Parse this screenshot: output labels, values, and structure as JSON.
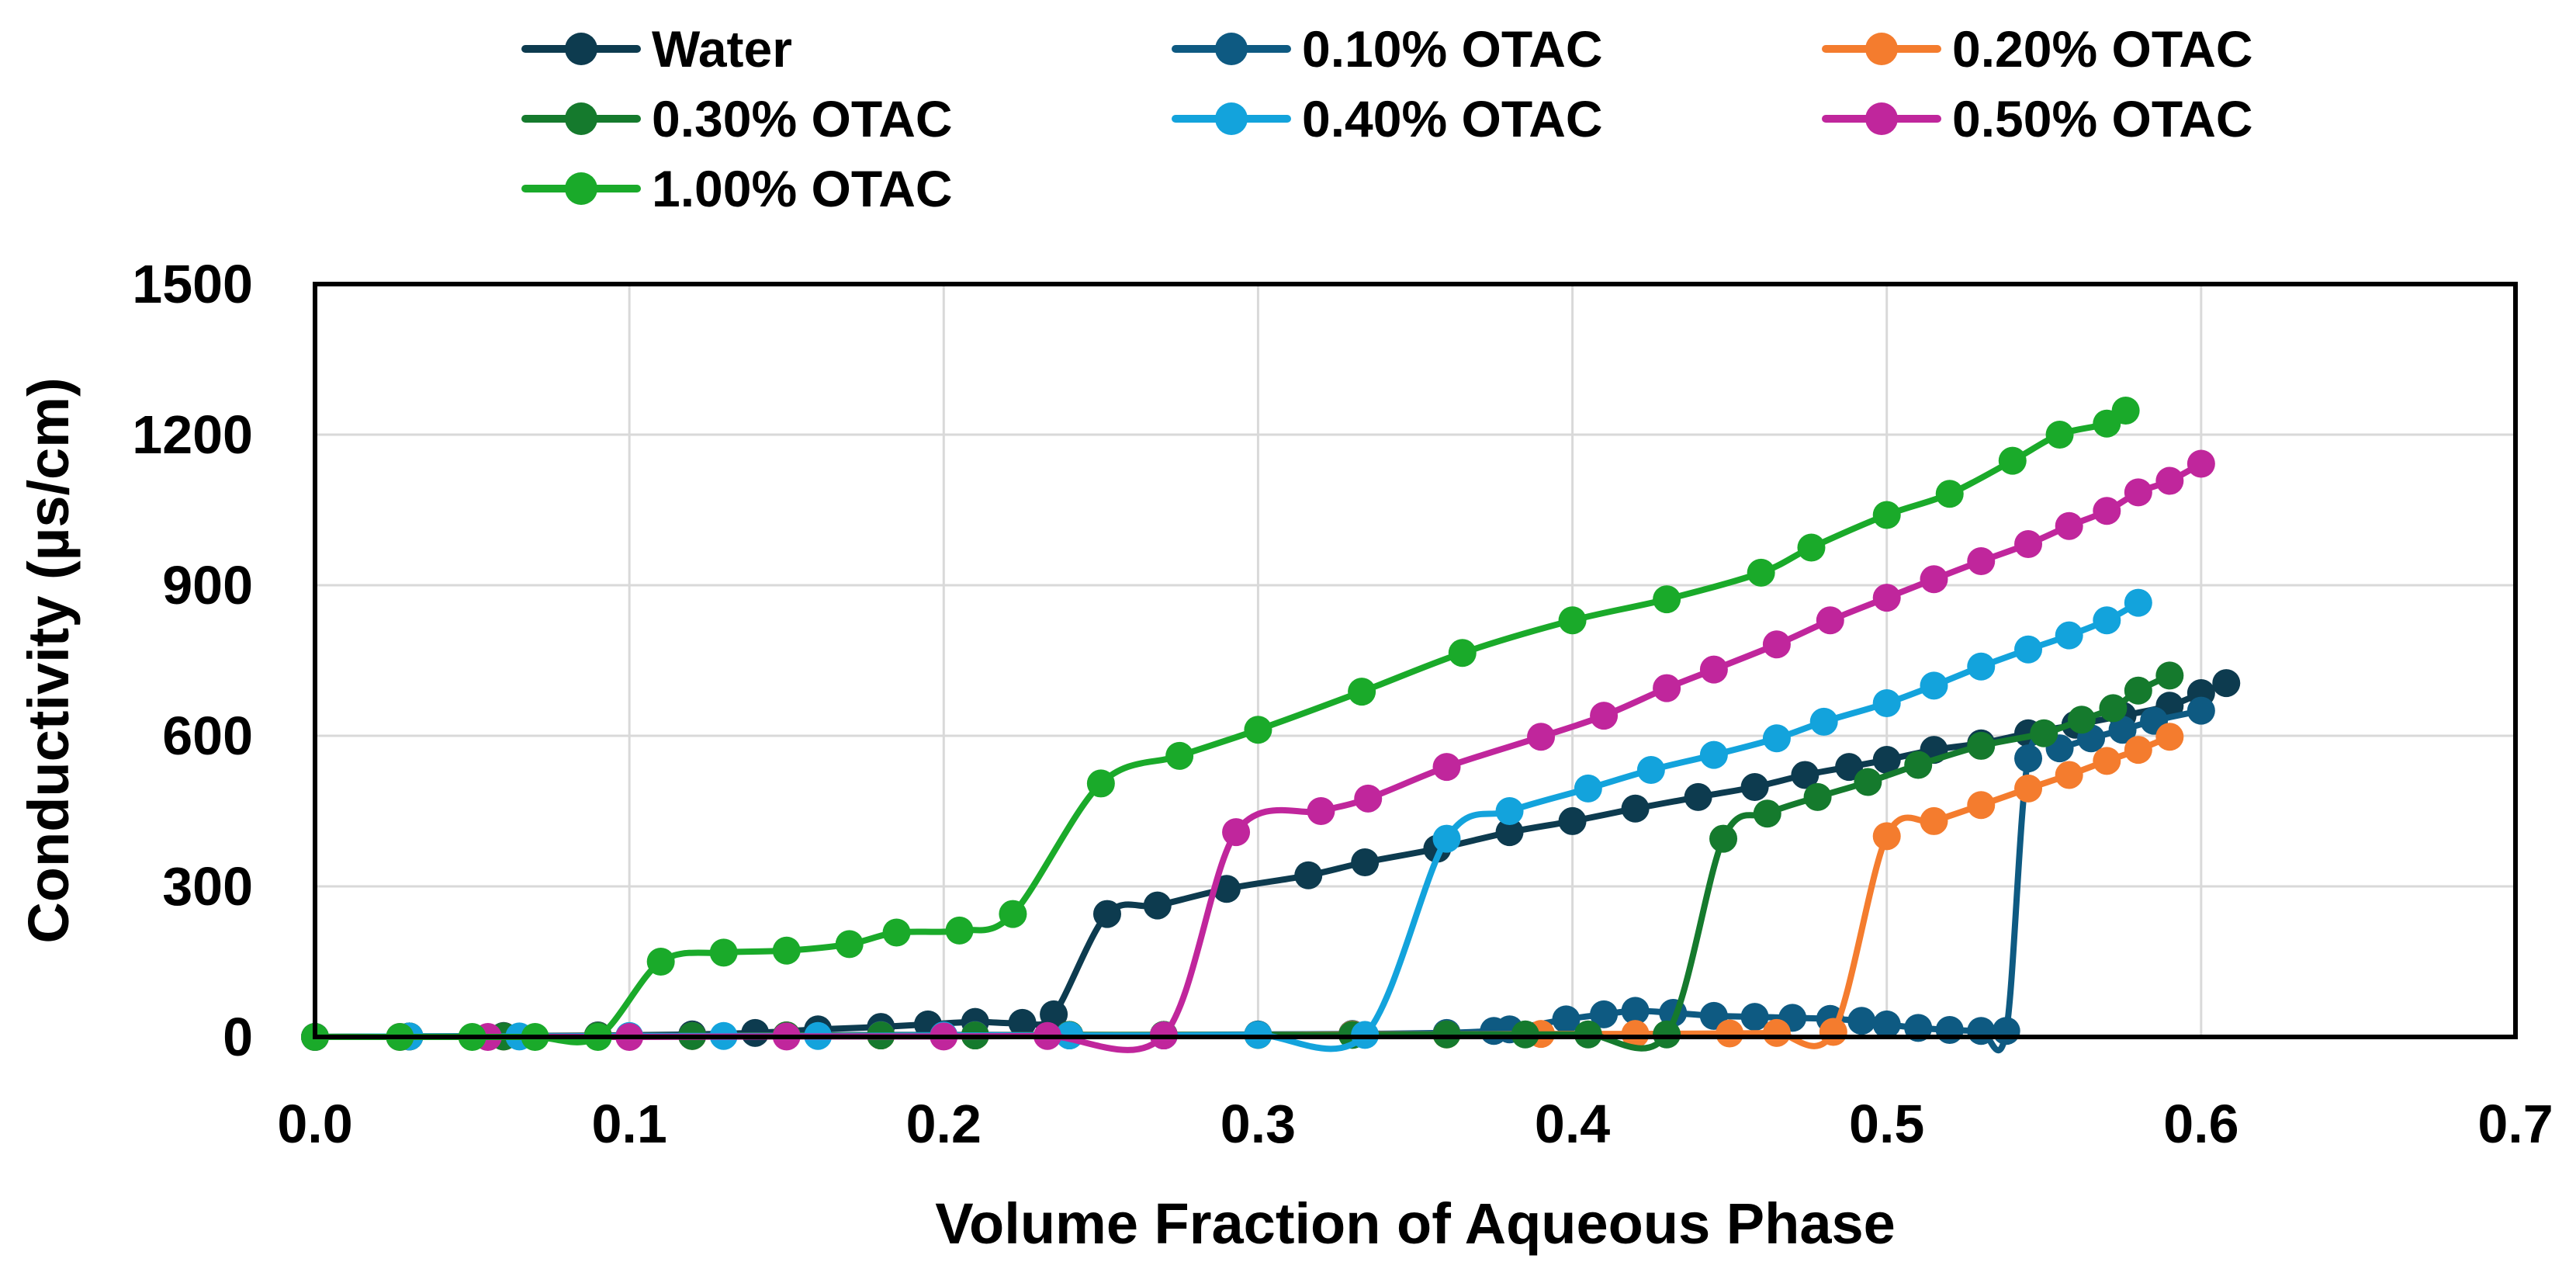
{
  "chart_data": {
    "type": "line",
    "title": "",
    "xlabel": "Volume Fraction of Aqueous Phase",
    "ylabel": "Conductivity (µs/cm)",
    "xlim": [
      0,
      0.7
    ],
    "ylim": [
      0,
      1500
    ],
    "xticks": [
      "0.0",
      "0.1",
      "0.2",
      "0.3",
      "0.4",
      "0.5",
      "0.6",
      "0.7"
    ],
    "yticks": [
      "0",
      "300",
      "600",
      "900",
      "1200",
      "1500"
    ],
    "grid": true,
    "legend_position": "top",
    "series": [
      {
        "name": "Water",
        "color": "#0d3b4f",
        "points": [
          [
            0,
            0
          ],
          [
            0.03,
            1
          ],
          [
            0.06,
            2
          ],
          [
            0.09,
            3
          ],
          [
            0.12,
            5
          ],
          [
            0.14,
            8
          ],
          [
            0.16,
            15
          ],
          [
            0.18,
            20
          ],
          [
            0.195,
            25
          ],
          [
            0.21,
            30
          ],
          [
            0.225,
            28
          ],
          [
            0.235,
            45
          ],
          [
            0.252,
            245
          ],
          [
            0.268,
            262
          ],
          [
            0.29,
            295
          ],
          [
            0.316,
            322
          ],
          [
            0.334,
            348
          ],
          [
            0.357,
            375
          ],
          [
            0.38,
            408
          ],
          [
            0.4,
            430
          ],
          [
            0.42,
            455
          ],
          [
            0.44,
            478
          ],
          [
            0.458,
            498
          ],
          [
            0.474,
            522
          ],
          [
            0.488,
            538
          ],
          [
            0.5,
            552
          ],
          [
            0.515,
            572
          ],
          [
            0.53,
            585
          ],
          [
            0.545,
            605
          ],
          [
            0.56,
            622
          ],
          [
            0.575,
            640
          ],
          [
            0.59,
            660
          ],
          [
            0.6,
            685
          ],
          [
            0.608,
            705
          ]
        ]
      },
      {
        "name": "0.10% OTAC",
        "color": "#0e5a82",
        "points": [
          [
            0,
            0
          ],
          [
            0.03,
            1
          ],
          [
            0.06,
            1
          ],
          [
            0.09,
            2
          ],
          [
            0.12,
            2
          ],
          [
            0.15,
            3
          ],
          [
            0.18,
            4
          ],
          [
            0.21,
            4
          ],
          [
            0.24,
            4
          ],
          [
            0.27,
            4
          ],
          [
            0.3,
            5
          ],
          [
            0.33,
            6
          ],
          [
            0.36,
            8
          ],
          [
            0.375,
            12
          ],
          [
            0.38,
            15
          ],
          [
            0.398,
            35
          ],
          [
            0.41,
            45
          ],
          [
            0.42,
            52
          ],
          [
            0.432,
            48
          ],
          [
            0.445,
            42
          ],
          [
            0.458,
            40
          ],
          [
            0.47,
            38
          ],
          [
            0.482,
            36
          ],
          [
            0.492,
            32
          ],
          [
            0.5,
            25
          ],
          [
            0.51,
            18
          ],
          [
            0.52,
            14
          ],
          [
            0.53,
            12
          ],
          [
            0.538,
            12
          ],
          [
            0.545,
            555
          ],
          [
            0.555,
            575
          ],
          [
            0.565,
            595
          ],
          [
            0.575,
            612
          ],
          [
            0.585,
            630
          ],
          [
            0.6,
            650
          ]
        ]
      },
      {
        "name": "0.20% OTAC",
        "color": "#f47c2e",
        "points": [
          [
            0,
            0
          ],
          [
            0.03,
            1
          ],
          [
            0.06,
            1
          ],
          [
            0.09,
            2
          ],
          [
            0.12,
            2
          ],
          [
            0.15,
            3
          ],
          [
            0.18,
            3
          ],
          [
            0.21,
            3
          ],
          [
            0.24,
            4
          ],
          [
            0.27,
            4
          ],
          [
            0.3,
            4
          ],
          [
            0.33,
            5
          ],
          [
            0.36,
            5
          ],
          [
            0.39,
            6
          ],
          [
            0.42,
            6
          ],
          [
            0.45,
            7
          ],
          [
            0.465,
            8
          ],
          [
            0.483,
            10
          ],
          [
            0.5,
            400
          ],
          [
            0.515,
            430
          ],
          [
            0.53,
            462
          ],
          [
            0.545,
            495
          ],
          [
            0.558,
            522
          ],
          [
            0.57,
            550
          ],
          [
            0.58,
            572
          ],
          [
            0.59,
            598
          ]
        ]
      },
      {
        "name": "0.30% OTAC",
        "color": "#157a2d",
        "points": [
          [
            0,
            0
          ],
          [
            0.03,
            1
          ],
          [
            0.06,
            1
          ],
          [
            0.09,
            2
          ],
          [
            0.12,
            2
          ],
          [
            0.15,
            3
          ],
          [
            0.18,
            3
          ],
          [
            0.21,
            3
          ],
          [
            0.24,
            4
          ],
          [
            0.27,
            4
          ],
          [
            0.3,
            4
          ],
          [
            0.33,
            4
          ],
          [
            0.36,
            5
          ],
          [
            0.385,
            5
          ],
          [
            0.405,
            5
          ],
          [
            0.43,
            5
          ],
          [
            0.448,
            395
          ],
          [
            0.462,
            445
          ],
          [
            0.478,
            478
          ],
          [
            0.494,
            508
          ],
          [
            0.51,
            542
          ],
          [
            0.53,
            580
          ],
          [
            0.55,
            605
          ],
          [
            0.562,
            632
          ],
          [
            0.572,
            655
          ],
          [
            0.58,
            690
          ],
          [
            0.59,
            720
          ]
        ]
      },
      {
        "name": "0.40% OTAC",
        "color": "#13a3dc",
        "points": [
          [
            0,
            0
          ],
          [
            0.03,
            1
          ],
          [
            0.065,
            1
          ],
          [
            0.1,
            2
          ],
          [
            0.13,
            2
          ],
          [
            0.16,
            2
          ],
          [
            0.2,
            3
          ],
          [
            0.24,
            3
          ],
          [
            0.27,
            3
          ],
          [
            0.3,
            4
          ],
          [
            0.334,
            4
          ],
          [
            0.36,
            395
          ],
          [
            0.38,
            450
          ],
          [
            0.405,
            495
          ],
          [
            0.425,
            532
          ],
          [
            0.445,
            562
          ],
          [
            0.465,
            595
          ],
          [
            0.48,
            628
          ],
          [
            0.5,
            665
          ],
          [
            0.515,
            700
          ],
          [
            0.53,
            738
          ],
          [
            0.545,
            772
          ],
          [
            0.558,
            800
          ],
          [
            0.57,
            830
          ],
          [
            0.58,
            865
          ]
        ]
      },
      {
        "name": "0.50% OTAC",
        "color": "#c0269c",
        "points": [
          [
            0,
            0
          ],
          [
            0.027,
            0
          ],
          [
            0.055,
            0
          ],
          [
            0.1,
            0
          ],
          [
            0.15,
            1
          ],
          [
            0.2,
            1
          ],
          [
            0.233,
            2
          ],
          [
            0.27,
            3
          ],
          [
            0.293,
            408
          ],
          [
            0.32,
            450
          ],
          [
            0.335,
            475
          ],
          [
            0.36,
            538
          ],
          [
            0.39,
            598
          ],
          [
            0.41,
            640
          ],
          [
            0.43,
            695
          ],
          [
            0.445,
            732
          ],
          [
            0.465,
            782
          ],
          [
            0.482,
            830
          ],
          [
            0.5,
            875
          ],
          [
            0.515,
            912
          ],
          [
            0.53,
            948
          ],
          [
            0.545,
            982
          ],
          [
            0.558,
            1018
          ],
          [
            0.57,
            1048
          ],
          [
            0.58,
            1085
          ],
          [
            0.59,
            1108
          ],
          [
            0.6,
            1142
          ]
        ]
      },
      {
        "name": "1.00% OTAC",
        "color": "#1aaa2a",
        "points": [
          [
            0,
            0
          ],
          [
            0.027,
            0
          ],
          [
            0.05,
            0
          ],
          [
            0.07,
            0
          ],
          [
            0.09,
            0
          ],
          [
            0.11,
            150
          ],
          [
            0.13,
            168
          ],
          [
            0.15,
            172
          ],
          [
            0.17,
            185
          ],
          [
            0.185,
            208
          ],
          [
            0.205,
            212
          ],
          [
            0.222,
            245
          ],
          [
            0.25,
            505
          ],
          [
            0.275,
            560
          ],
          [
            0.3,
            612
          ],
          [
            0.333,
            688
          ],
          [
            0.365,
            765
          ],
          [
            0.4,
            830
          ],
          [
            0.43,
            872
          ],
          [
            0.46,
            925
          ],
          [
            0.476,
            975
          ],
          [
            0.5,
            1040
          ],
          [
            0.52,
            1082
          ],
          [
            0.54,
            1148
          ],
          [
            0.555,
            1200
          ],
          [
            0.57,
            1222
          ],
          [
            0.576,
            1248
          ]
        ]
      }
    ]
  }
}
